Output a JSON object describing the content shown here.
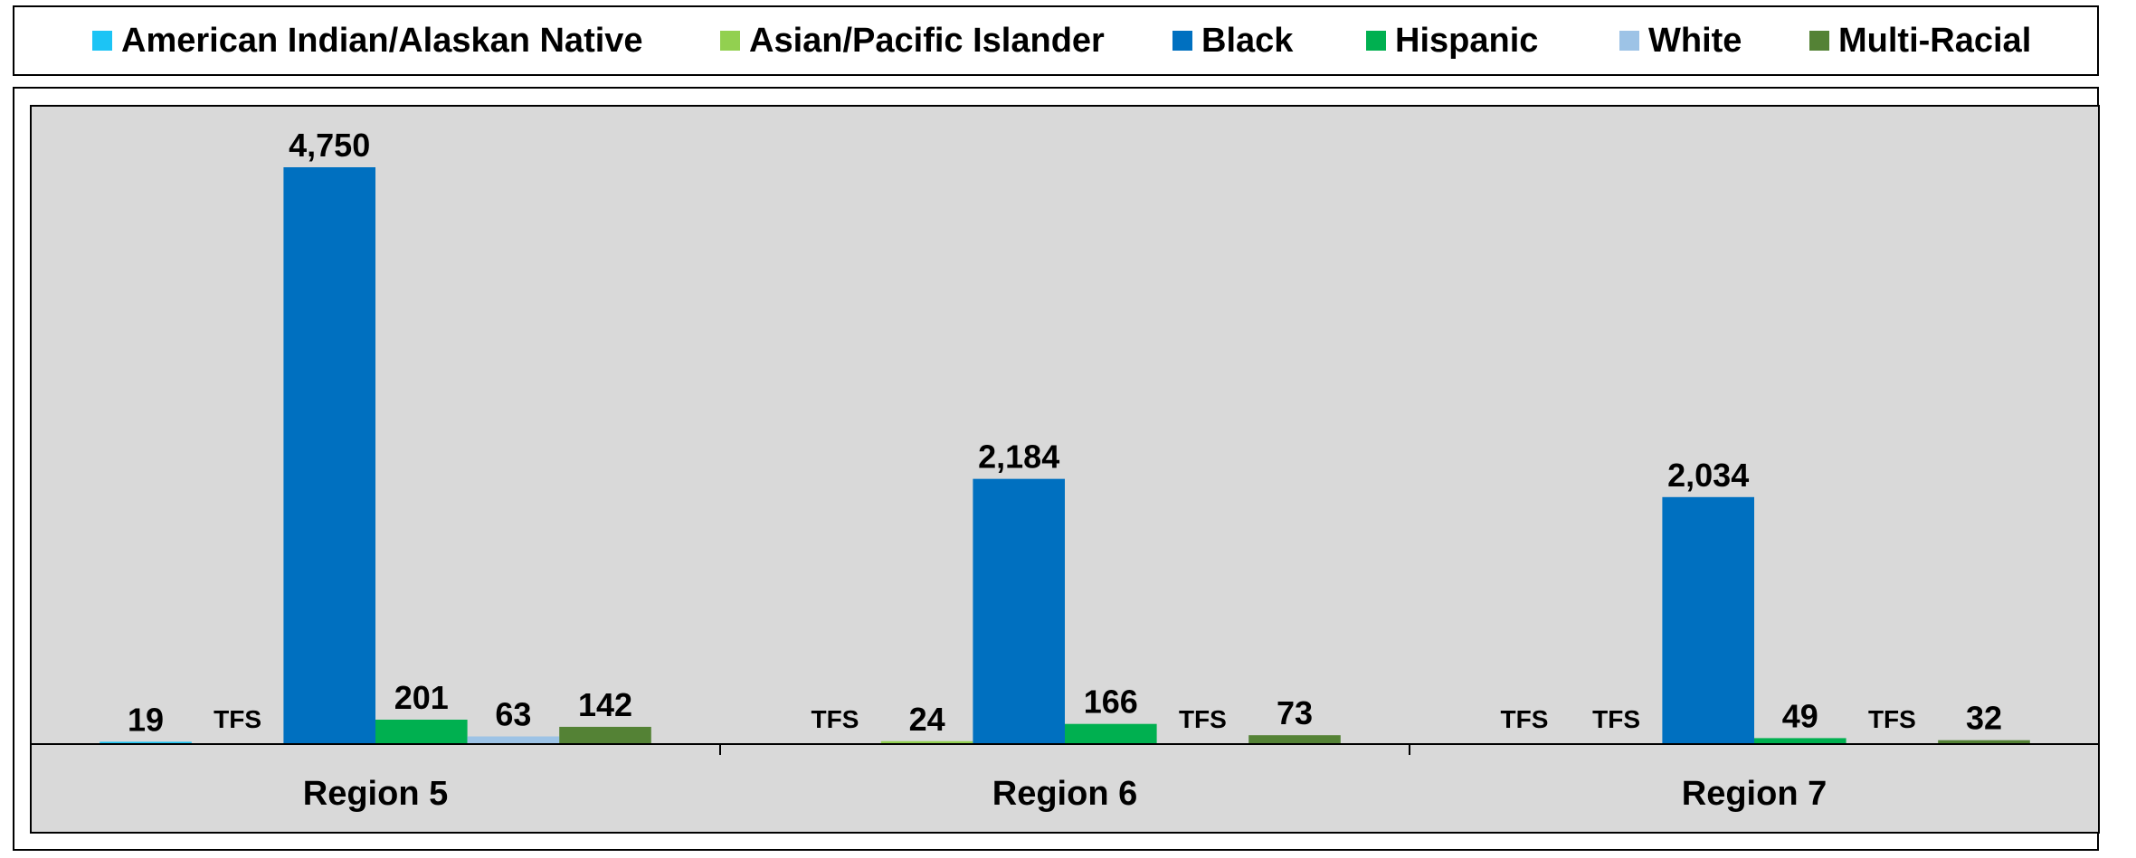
{
  "chart_data": {
    "type": "bar",
    "categories": [
      "Region 5",
      "Region 6",
      "Region 7"
    ],
    "series": [
      {
        "name": "American Indian/Alaskan Native",
        "color": "#1cc4f5",
        "values": [
          19,
          null,
          null
        ],
        "labels": [
          "19",
          "TFS",
          "TFS"
        ]
      },
      {
        "name": "Asian/Pacific Islander",
        "color": "#92d050",
        "values": [
          null,
          24,
          null
        ],
        "labels": [
          "TFS",
          "24",
          "TFS"
        ]
      },
      {
        "name": "Black",
        "color": "#0070c0",
        "values": [
          4750,
          2184,
          2034
        ],
        "labels": [
          "4,750",
          "2,184",
          "2,034"
        ]
      },
      {
        "name": "Hispanic",
        "color": "#00b050",
        "values": [
          201,
          166,
          49
        ],
        "labels": [
          "201",
          "166",
          "49"
        ]
      },
      {
        "name": "White",
        "color": "#9dc3e6",
        "values": [
          63,
          null,
          null
        ],
        "labels": [
          "63",
          "TFS",
          "TFS"
        ]
      },
      {
        "name": "Multi-Racial",
        "color": "#548235",
        "values": [
          142,
          73,
          32
        ],
        "labels": [
          "142",
          "73",
          "32"
        ]
      }
    ],
    "legend_position": "top",
    "grid": false,
    "ylim": [
      0,
      4750
    ]
  }
}
